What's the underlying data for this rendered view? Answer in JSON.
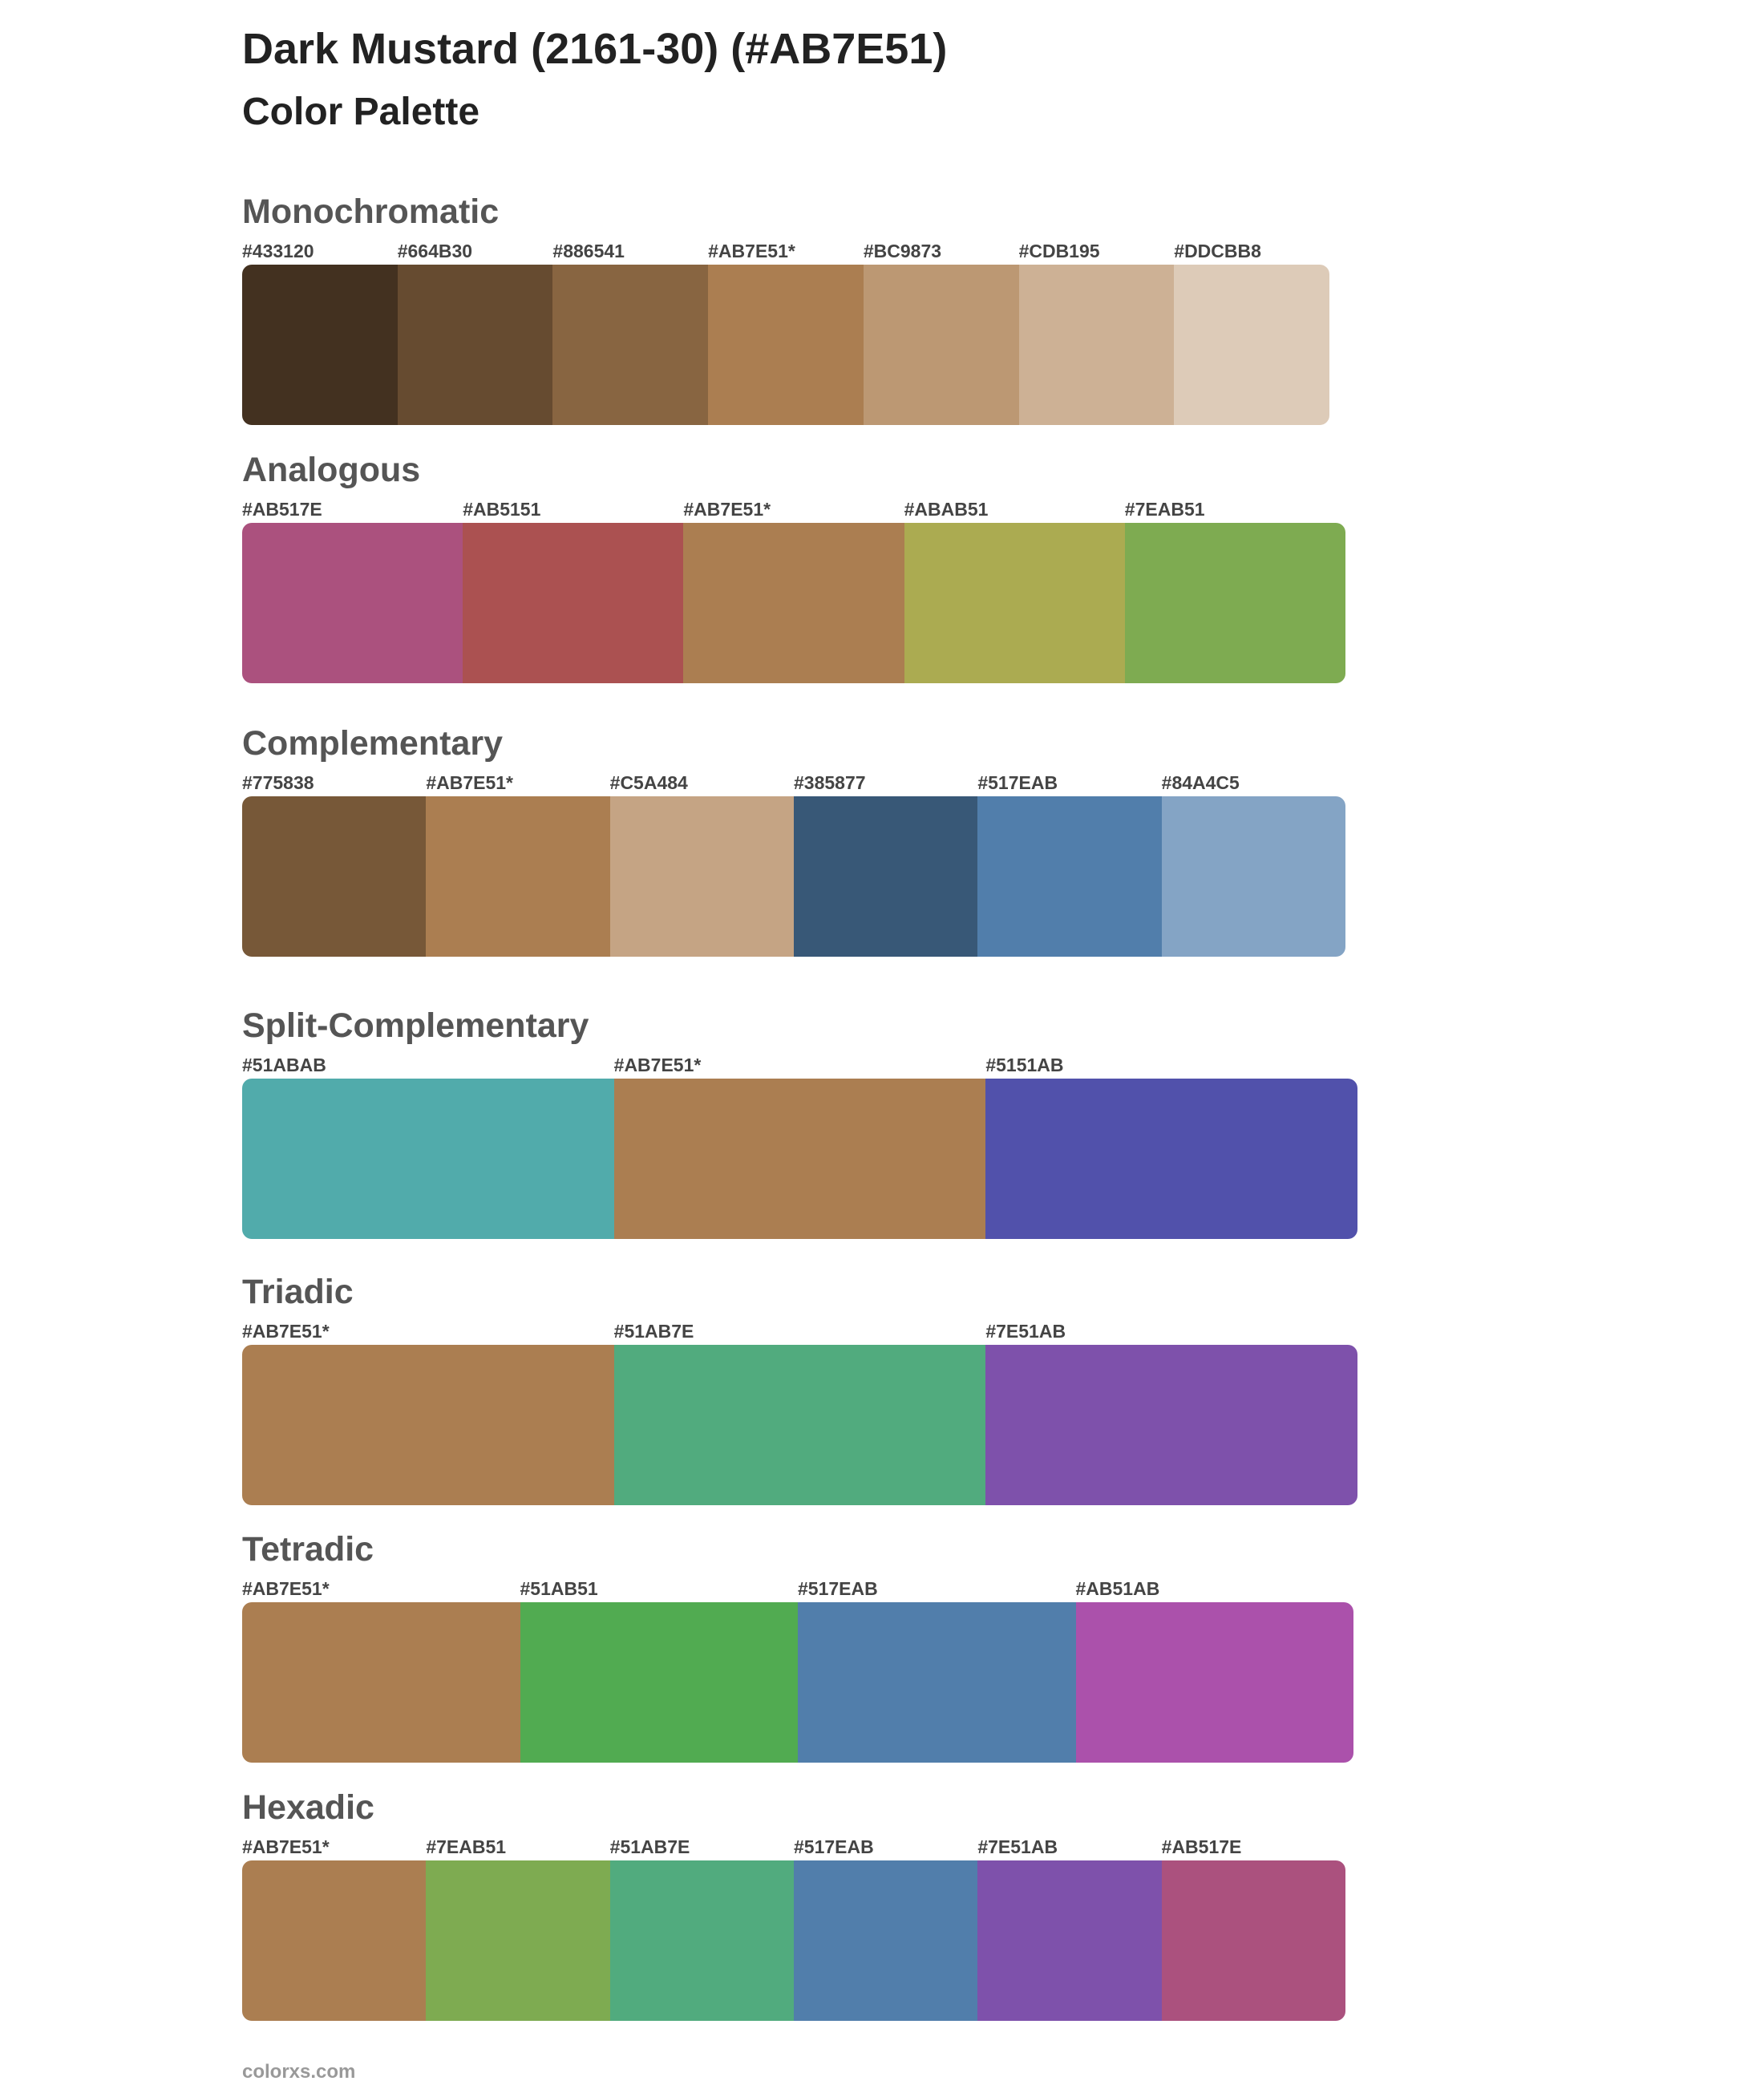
{
  "header": {
    "title": "Dark Mustard (2161-30) (#AB7E51)",
    "subtitle": "Color Palette"
  },
  "sections": [
    {
      "name": "Monochromatic",
      "swatches": [
        {
          "label": "#433120",
          "color": "#433120"
        },
        {
          "label": "#664B30",
          "color": "#664B30"
        },
        {
          "label": "#886541",
          "color": "#886541"
        },
        {
          "label": "#AB7E51*",
          "color": "#AB7E51"
        },
        {
          "label": "#BC9873",
          "color": "#BC9873"
        },
        {
          "label": "#CDB195",
          "color": "#CDB195"
        },
        {
          "label": "#DDCBB8",
          "color": "#DDCBB8"
        }
      ]
    },
    {
      "name": "Analogous",
      "swatches": [
        {
          "label": "#AB517E",
          "color": "#AB517E"
        },
        {
          "label": "#AB5151",
          "color": "#AB5151"
        },
        {
          "label": "#AB7E51*",
          "color": "#AB7E51"
        },
        {
          "label": "#ABAB51",
          "color": "#ABAB51"
        },
        {
          "label": "#7EAB51",
          "color": "#7EAB51"
        }
      ]
    },
    {
      "name": "Complementary",
      "swatches": [
        {
          "label": "#775838",
          "color": "#775838"
        },
        {
          "label": "#AB7E51*",
          "color": "#AB7E51"
        },
        {
          "label": "#C5A484",
          "color": "#C5A484"
        },
        {
          "label": "#385877",
          "color": "#385877"
        },
        {
          "label": "#517EAB",
          "color": "#517EAB"
        },
        {
          "label": "#84A4C5",
          "color": "#84A4C5"
        }
      ]
    },
    {
      "name": "Split-Complementary",
      "swatches": [
        {
          "label": "#51ABAB",
          "color": "#51ABAB"
        },
        {
          "label": "#AB7E51*",
          "color": "#AB7E51"
        },
        {
          "label": "#5151AB",
          "color": "#5151AB"
        }
      ]
    },
    {
      "name": "Triadic",
      "swatches": [
        {
          "label": "#AB7E51*",
          "color": "#AB7E51"
        },
        {
          "label": "#51AB7E",
          "color": "#51AB7E"
        },
        {
          "label": "#7E51AB",
          "color": "#7E51AB"
        }
      ]
    },
    {
      "name": "Tetradic",
      "swatches": [
        {
          "label": "#AB7E51*",
          "color": "#AB7E51"
        },
        {
          "label": "#51AB51",
          "color": "#51AB51"
        },
        {
          "label": "#517EAB",
          "color": "#517EAB"
        },
        {
          "label": "#AB51AB",
          "color": "#AB51AB"
        }
      ]
    },
    {
      "name": "Hexadic",
      "swatches": [
        {
          "label": "#AB7E51*",
          "color": "#AB7E51"
        },
        {
          "label": "#7EAB51",
          "color": "#7EAB51"
        },
        {
          "label": "#51AB7E",
          "color": "#51AB7E"
        },
        {
          "label": "#517EAB",
          "color": "#517EAB"
        },
        {
          "label": "#7E51AB",
          "color": "#7E51AB"
        },
        {
          "label": "#AB517E",
          "color": "#AB517E"
        }
      ]
    }
  ],
  "footer": {
    "text": "colorxs.com"
  }
}
